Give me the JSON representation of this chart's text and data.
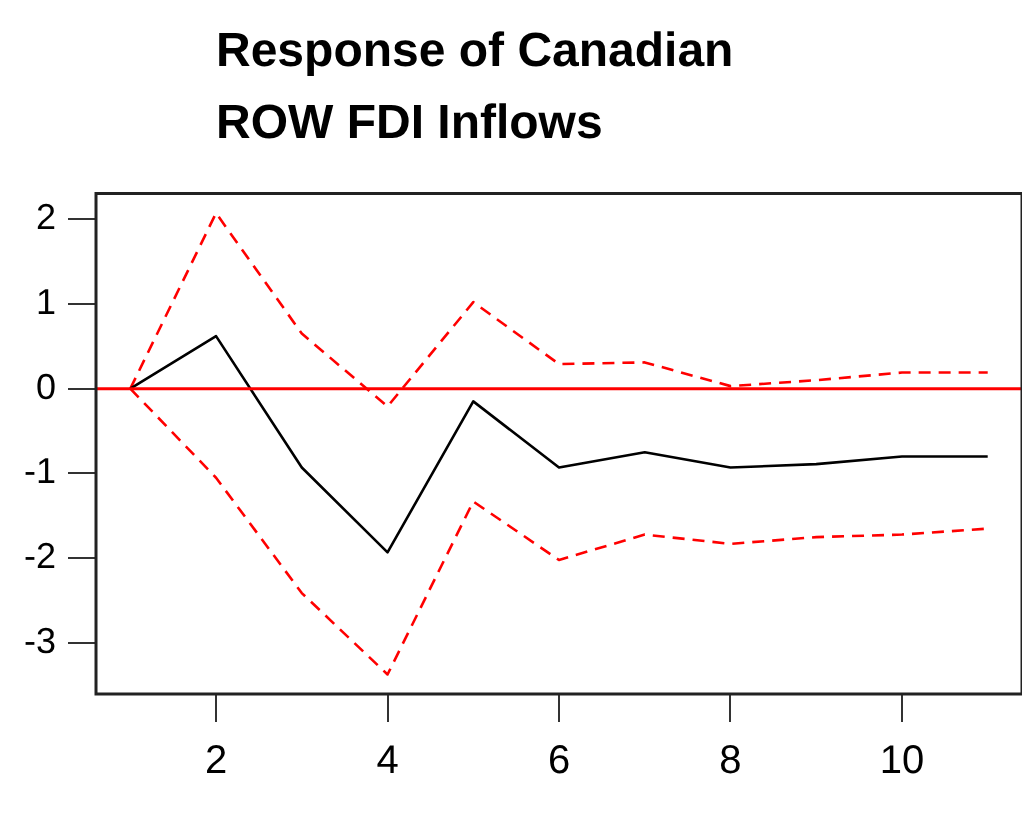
{
  "chart_data": {
    "type": "line",
    "title": "Response of Canadian ROW FDI Inflows",
    "x": [
      1,
      2,
      3,
      4,
      5,
      6,
      7,
      8,
      9,
      10,
      11
    ],
    "series": [
      {
        "color": "#000000",
        "line_style": "solid",
        "values": [
          0,
          0.62,
          -0.93,
          -1.93,
          -0.15,
          -0.93,
          -0.75,
          -0.93,
          -0.89,
          -0.8,
          -0.8
        ]
      },
      {
        "color": "#ff0000",
        "line_style": "dashed",
        "values": [
          0,
          2.07,
          0.65,
          -0.21,
          1.02,
          0.29,
          0.31,
          0.03,
          0.1,
          0.19,
          0.19
        ]
      },
      {
        "color": "#ff0000",
        "line_style": "dashed",
        "values": [
          0,
          -1.05,
          -2.41,
          -3.37,
          -1.33,
          -2.02,
          -1.72,
          -1.83,
          -1.75,
          -1.72,
          -1.65
        ]
      }
    ],
    "xlim": [
      0.6,
      11.4
    ],
    "xticks": [
      2,
      4,
      6,
      8,
      10
    ],
    "ylim": [
      -3.6,
      2.3
    ],
    "yticks": [
      -3,
      -2,
      -1,
      0,
      1,
      2
    ],
    "ref_lines": [
      {
        "axis": "y",
        "value": 0,
        "color": "#ff0000",
        "line_style": "solid"
      }
    ],
    "grid": false,
    "legend": false,
    "marker": "none"
  }
}
